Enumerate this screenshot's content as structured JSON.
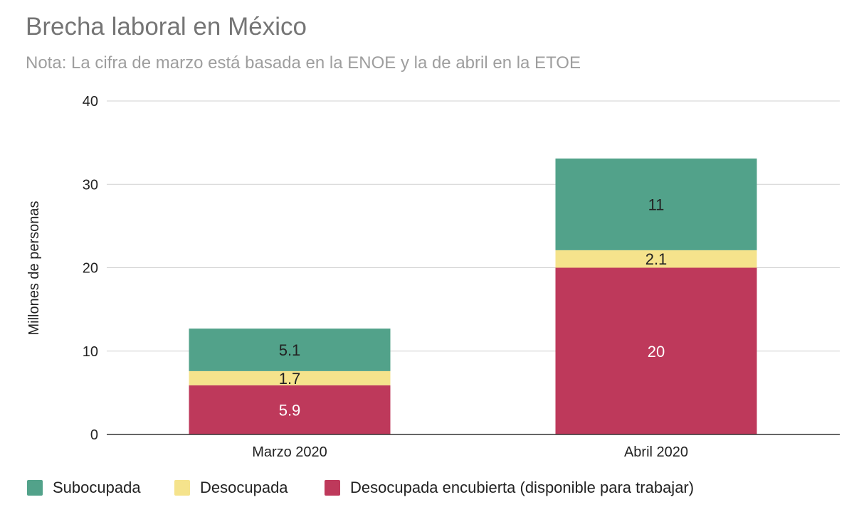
{
  "chart_data": {
    "type": "bar",
    "stacked": true,
    "title": "Brecha laboral en México",
    "subtitle": "Nota: La cifra de marzo está basada en la ENOE y la de abril en la ETOE",
    "xlabel": "",
    "ylabel": "Millones de personas",
    "ylim": [
      0,
      40
    ],
    "yticks": [
      "0",
      "10",
      "20",
      "30",
      "40"
    ],
    "grid": true,
    "legend_position": "bottom",
    "categories": [
      "Marzo 2020",
      "Abril 2020"
    ],
    "series": [
      {
        "name": "Desocupada encubierta (disponible para trabajar)",
        "values": [
          5.9,
          20
        ],
        "labels": [
          "5.9",
          "20"
        ],
        "color": "#BE395B",
        "label_color": "#ffffff"
      },
      {
        "name": "Desocupada",
        "values": [
          1.7,
          2.1
        ],
        "labels": [
          "1.7",
          "2.1"
        ],
        "color": "#F5E38C",
        "label_color": "#222222"
      },
      {
        "name": "Subocupada",
        "values": [
          5.1,
          11
        ],
        "labels": [
          "5.1",
          "11"
        ],
        "color": "#52A28A",
        "label_color": "#222222"
      }
    ],
    "legend_order": [
      2,
      1,
      0
    ]
  }
}
